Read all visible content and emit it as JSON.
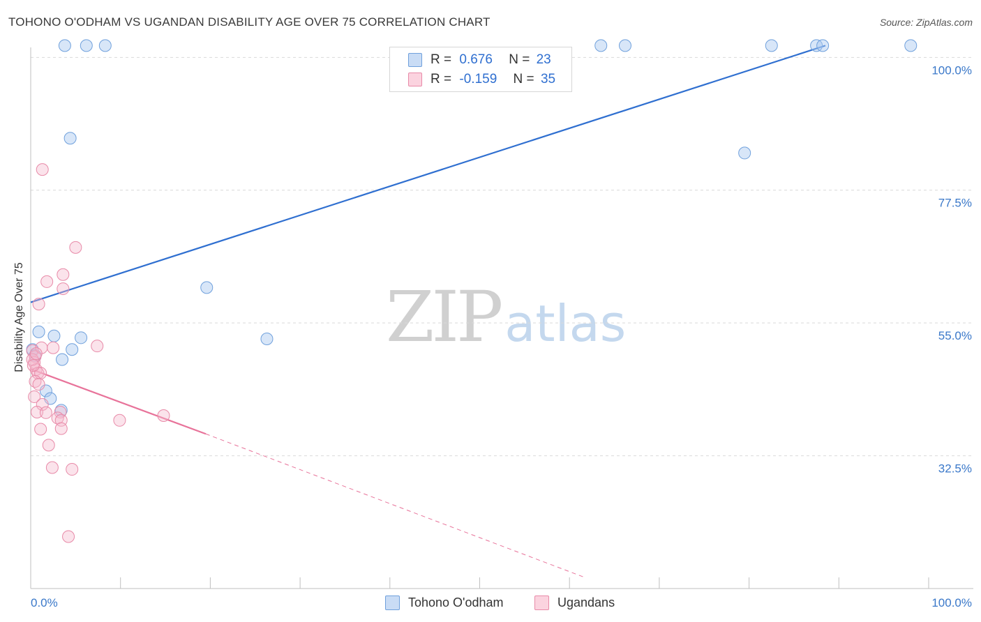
{
  "title": "TOHONO O'ODHAM VS UGANDAN DISABILITY AGE OVER 75 CORRELATION CHART",
  "source": "Source: ZipAtlas.com",
  "watermark": {
    "zip": "ZIP",
    "atlas": "atlas"
  },
  "legend": {
    "r_label": "R =",
    "n_label": "N =",
    "series": [
      {
        "name": "Tohono O'odham",
        "r": "0.676",
        "n": "23",
        "color": "#a9c8ef",
        "edge": "#6fa0dc"
      },
      {
        "name": "Ugandans",
        "r": "-0.159",
        "n": "35",
        "color": "#f6b9cc",
        "edge": "#e88aa8"
      }
    ]
  },
  "colors": {
    "blue_line": "#2f6fd0",
    "pink_line": "#e8739a",
    "grid": "#d9d9d9",
    "axis_text": "#3a78c9"
  },
  "chart_data": {
    "type": "scatter",
    "title": "TOHONO O'ODHAM VS UGANDAN DISABILITY AGE OVER 75 CORRELATION CHART",
    "xlabel": "",
    "ylabel": "Disability Age Over 75",
    "xlim": [
      0,
      100
    ],
    "ylim": [
      10,
      105
    ],
    "x_tick_labels": [
      "0.0%",
      "100.0%"
    ],
    "y_ticks": [
      32.5,
      55.0,
      77.5,
      100.0
    ],
    "y_tick_labels": [
      "32.5%",
      "55.0%",
      "77.5%",
      "100.0%"
    ],
    "grid": true,
    "series": [
      {
        "name": "Tohono O'odham",
        "points": [
          [
            3.8,
            102
          ],
          [
            6.2,
            102
          ],
          [
            8.3,
            102
          ],
          [
            4.4,
            86.3
          ],
          [
            19.6,
            61
          ],
          [
            26.3,
            52.3
          ],
          [
            63.5,
            102
          ],
          [
            66.2,
            102
          ],
          [
            79.5,
            83.8
          ],
          [
            82.5,
            102
          ],
          [
            87.5,
            102
          ],
          [
            88.2,
            102
          ],
          [
            98.0,
            102
          ],
          [
            0.2,
            50.5
          ],
          [
            0.5,
            49.5
          ],
          [
            0.9,
            53.5
          ],
          [
            2.6,
            52.8
          ],
          [
            5.6,
            52.5
          ],
          [
            4.6,
            50.5
          ],
          [
            3.5,
            48.8
          ],
          [
            1.7,
            43.5
          ],
          [
            2.2,
            42.2
          ],
          [
            3.4,
            40.2
          ]
        ],
        "trendline": {
          "x": [
            0,
            88.5
          ],
          "y": [
            58.5,
            102
          ]
        }
      },
      {
        "name": "Ugandans",
        "points": [
          [
            1.3,
            81
          ],
          [
            5.0,
            67.8
          ],
          [
            3.6,
            63.2
          ],
          [
            1.8,
            62
          ],
          [
            3.6,
            60.8
          ],
          [
            0.9,
            58.2
          ],
          [
            0.2,
            50.3
          ],
          [
            0.5,
            49.3
          ],
          [
            1.2,
            50.8
          ],
          [
            2.5,
            50.8
          ],
          [
            7.4,
            51.1
          ],
          [
            0.4,
            48.3
          ],
          [
            0.6,
            47.1
          ],
          [
            0.8,
            46.5
          ],
          [
            1.1,
            46.5
          ],
          [
            0.5,
            45.1
          ],
          [
            0.9,
            44.6
          ],
          [
            0.4,
            42.5
          ],
          [
            1.3,
            41.2
          ],
          [
            0.7,
            39.9
          ],
          [
            1.7,
            39.8
          ],
          [
            3.3,
            39.9
          ],
          [
            3.0,
            38.9
          ],
          [
            3.4,
            38.5
          ],
          [
            9.9,
            38.5
          ],
          [
            14.8,
            39.3
          ],
          [
            1.1,
            37
          ],
          [
            3.4,
            37.1
          ],
          [
            2.0,
            34.3
          ],
          [
            2.4,
            30.5
          ],
          [
            4.6,
            30.2
          ],
          [
            4.2,
            18.8
          ],
          [
            0.2,
            48.8
          ],
          [
            0.3,
            47.8
          ],
          [
            0.6,
            49.8
          ]
        ],
        "trendline": {
          "x": [
            0,
            19.5
          ],
          "y": [
            47.2,
            36.2
          ]
        },
        "trendline_dashed": {
          "x": [
            19.5,
            61.5
          ],
          "y": [
            36.2,
            12.0
          ]
        }
      }
    ]
  }
}
